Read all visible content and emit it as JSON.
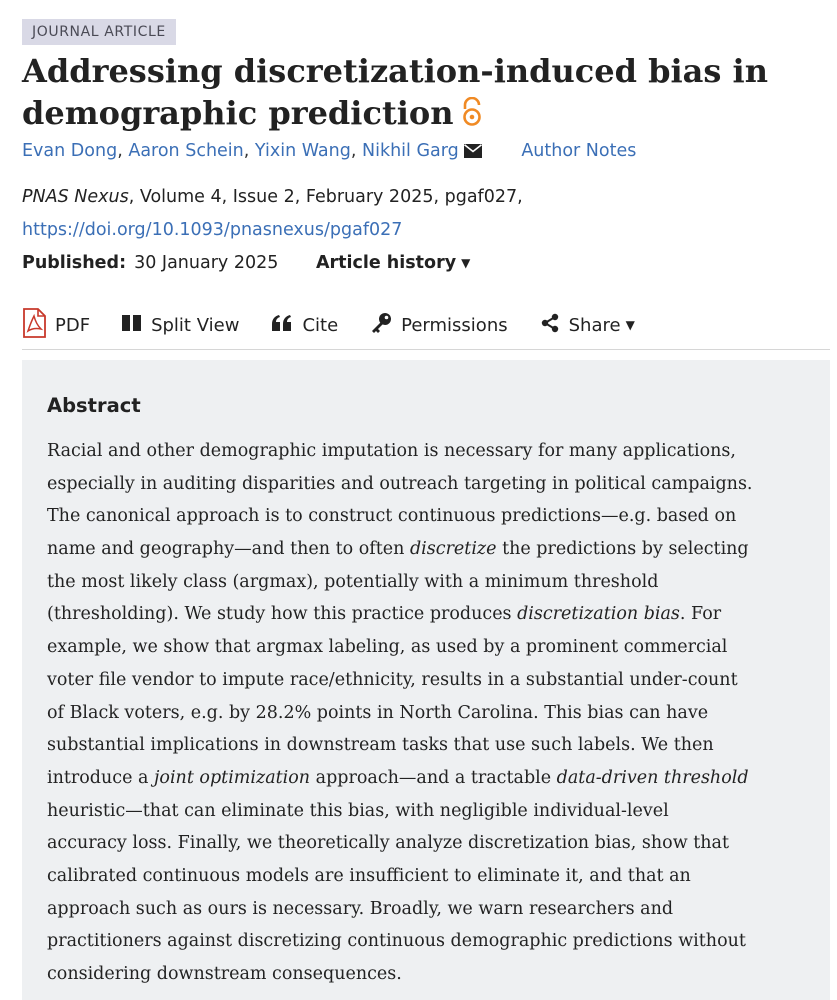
{
  "article_type": "JOURNAL ARTICLE",
  "title_line1": "Addressing discretization-induced bias in",
  "title_line2": "demographic prediction",
  "authors": [
    "Evan Dong",
    "Aaron Schein",
    "Yixin Wang",
    "Nikhil Garg"
  ],
  "author_separator": ",",
  "author_notes": "Author Notes",
  "citation": {
    "journal": "PNAS Nexus",
    "details": ", Volume 4, Issue 2, February 2025, pgaf027,",
    "doi": "https://doi.org/10.1093/pnasnexus/pgaf027"
  },
  "published": {
    "label": "Published:",
    "date": "30 January 2025",
    "history": "Article history"
  },
  "toolbar": {
    "pdf": "PDF",
    "split_view": "Split View",
    "cite": "Cite",
    "permissions": "Permissions",
    "share": "Share"
  },
  "abstract": {
    "heading": "Abstract",
    "lines": [
      [
        {
          "t": "Racial and other demographic imputation is necessary for many applications,"
        }
      ],
      [
        {
          "t": "especially in auditing disparities and outreach targeting in political campaigns."
        }
      ],
      [
        {
          "t": "The canonical approach is to construct continuous predictions—e.g. based on"
        }
      ],
      [
        {
          "t": "name and geography—and then to often "
        },
        {
          "t": "discretize",
          "i": true
        },
        {
          "t": " the predictions by selecting"
        }
      ],
      [
        {
          "t": "the most likely class (argmax), potentially with a minimum threshold"
        }
      ],
      [
        {
          "t": "(thresholding). We study how this practice produces "
        },
        {
          "t": "discretization bias",
          "i": true
        },
        {
          "t": ". For"
        }
      ],
      [
        {
          "t": "example, we show that argmax labeling, as used by a prominent commercial"
        }
      ],
      [
        {
          "t": "voter file vendor to impute race/ethnicity, results in a substantial under-count"
        }
      ],
      [
        {
          "t": "of Black voters, e.g. by 28.2% points in North Carolina. This bias can have"
        }
      ],
      [
        {
          "t": "substantial implications in downstream tasks that use such labels. We then"
        }
      ],
      [
        {
          "t": "introduce a "
        },
        {
          "t": "joint optimization",
          "i": true
        },
        {
          "t": " approach—and a tractable "
        },
        {
          "t": "data-driven threshold",
          "i": true
        }
      ],
      [
        {
          "t": "heuristic—that can eliminate this bias, with negligible individual-level"
        }
      ],
      [
        {
          "t": "accuracy loss. Finally, we theoretically analyze discretization bias, show that"
        }
      ],
      [
        {
          "t": "calibrated continuous models are insufficient to eliminate it, and that an"
        }
      ],
      [
        {
          "t": "approach such as ours is necessary. Broadly, we warn researchers and"
        }
      ],
      [
        {
          "t": "practitioners against discretizing continuous demographic predictions without"
        }
      ],
      [
        {
          "t": "considering downstream consequences."
        }
      ]
    ]
  },
  "colors": {
    "link": "#3b6fb6",
    "open_access": "#f08a24",
    "pdf_red": "#c8392b",
    "abstract_bg": "#eef0f2",
    "badge_bg": "#d9d9e6"
  },
  "icons": [
    "open-access-icon",
    "mail-icon",
    "pdf-icon",
    "split-view-icon",
    "quote-icon",
    "key-icon",
    "share-icon",
    "chevron-down-icon"
  ]
}
